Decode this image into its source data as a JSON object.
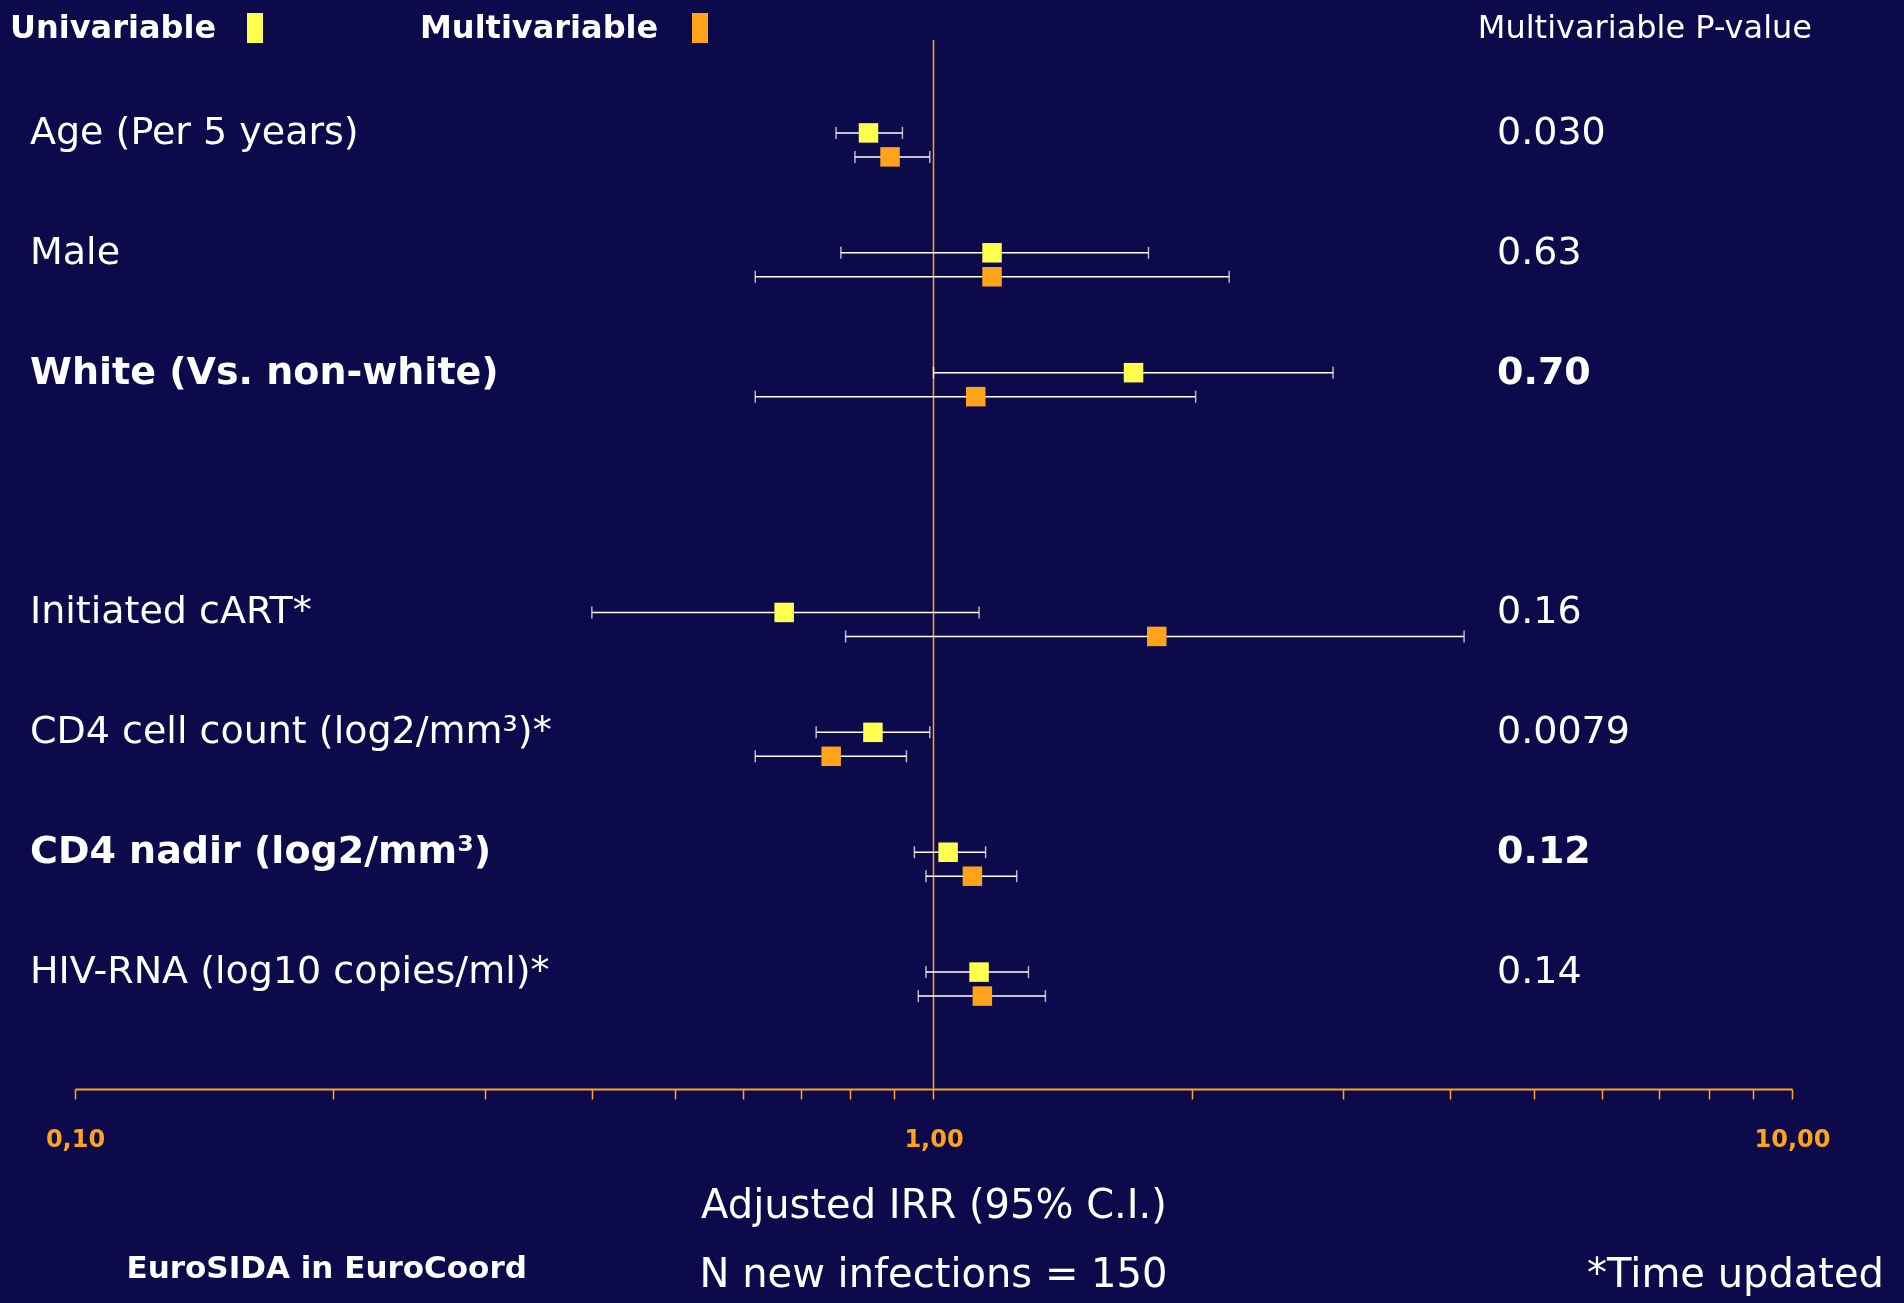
{
  "chart_data": {
    "type": "scatter",
    "orientation": "horizontal",
    "xlabel": "Adjusted IRR (95% C.I.)",
    "log": "x",
    "legend": "top left",
    "grid": false,
    "marker": "square",
    "categories": [
      "Age (Per 5 years)",
      "Male",
      "White (Vs. non-white)",
      null,
      "Initiated cART*",
      "CD4 cell count (log2/mm³)*",
      "CD4 nadir (log2/mm³)",
      "HIV-RNA (log10 copies/ml)*"
    ],
    "series": [
      {
        "name": "Univariable",
        "color": "#ffff4d",
        "values": [
          0.84,
          1.17,
          1.71,
          null,
          0.67,
          0.85,
          1.04,
          1.13
        ],
        "errors": [
          [
            0.77,
            0.92
          ],
          [
            0.78,
            1.78
          ],
          [
            1.0,
            2.92
          ],
          null,
          [
            0.4,
            1.13
          ],
          [
            0.73,
            0.99
          ],
          [
            0.95,
            1.15
          ],
          [
            0.98,
            1.29
          ]
        ]
      },
      {
        "name": "Multivariable",
        "color": "#ffa31a",
        "values": [
          0.89,
          1.17,
          1.12,
          null,
          1.82,
          0.76,
          1.11,
          1.14
        ],
        "errors": [
          [
            0.81,
            0.99
          ],
          [
            0.62,
            2.21
          ],
          [
            0.62,
            2.02
          ],
          null,
          [
            0.79,
            4.15
          ],
          [
            0.62,
            0.93
          ],
          [
            0.98,
            1.25
          ],
          [
            0.96,
            1.35
          ]
        ]
      }
    ],
    "xlim": [
      0.1,
      10
    ],
    "xticks": [
      {
        "value": 0.1,
        "label": "0,10"
      },
      {
        "value": 0.2,
        "label": null
      },
      {
        "value": 0.3,
        "label": null
      },
      {
        "value": 0.4,
        "label": null
      },
      {
        "value": 0.5,
        "label": null
      },
      {
        "value": 0.6,
        "label": null
      },
      {
        "value": 0.7,
        "label": null
      },
      {
        "value": 0.8,
        "label": null
      },
      {
        "value": 0.9,
        "label": null
      },
      {
        "value": 1,
        "label": "1,00"
      },
      {
        "value": 2,
        "label": null
      },
      {
        "value": 3,
        "label": null
      },
      {
        "value": 4,
        "label": null
      },
      {
        "value": 5,
        "label": null
      },
      {
        "value": 6,
        "label": null
      },
      {
        "value": 7,
        "label": null
      },
      {
        "value": 8,
        "label": null
      },
      {
        "value": 9,
        "label": null
      },
      {
        "value": 10,
        "label": "10,00"
      }
    ],
    "ref_lines": [
      {
        "axis": "x",
        "value": 1,
        "color": "#ffa31a"
      }
    ],
    "annotations": [
      "Multivariable P-value",
      "0.030",
      "0.63",
      "0.70",
      "0.16",
      "0.0079",
      "0.12",
      "0.14",
      "EuroSIDA in EuroCoord",
      "N new infections = 150",
      "*Time updated"
    ]
  }
}
